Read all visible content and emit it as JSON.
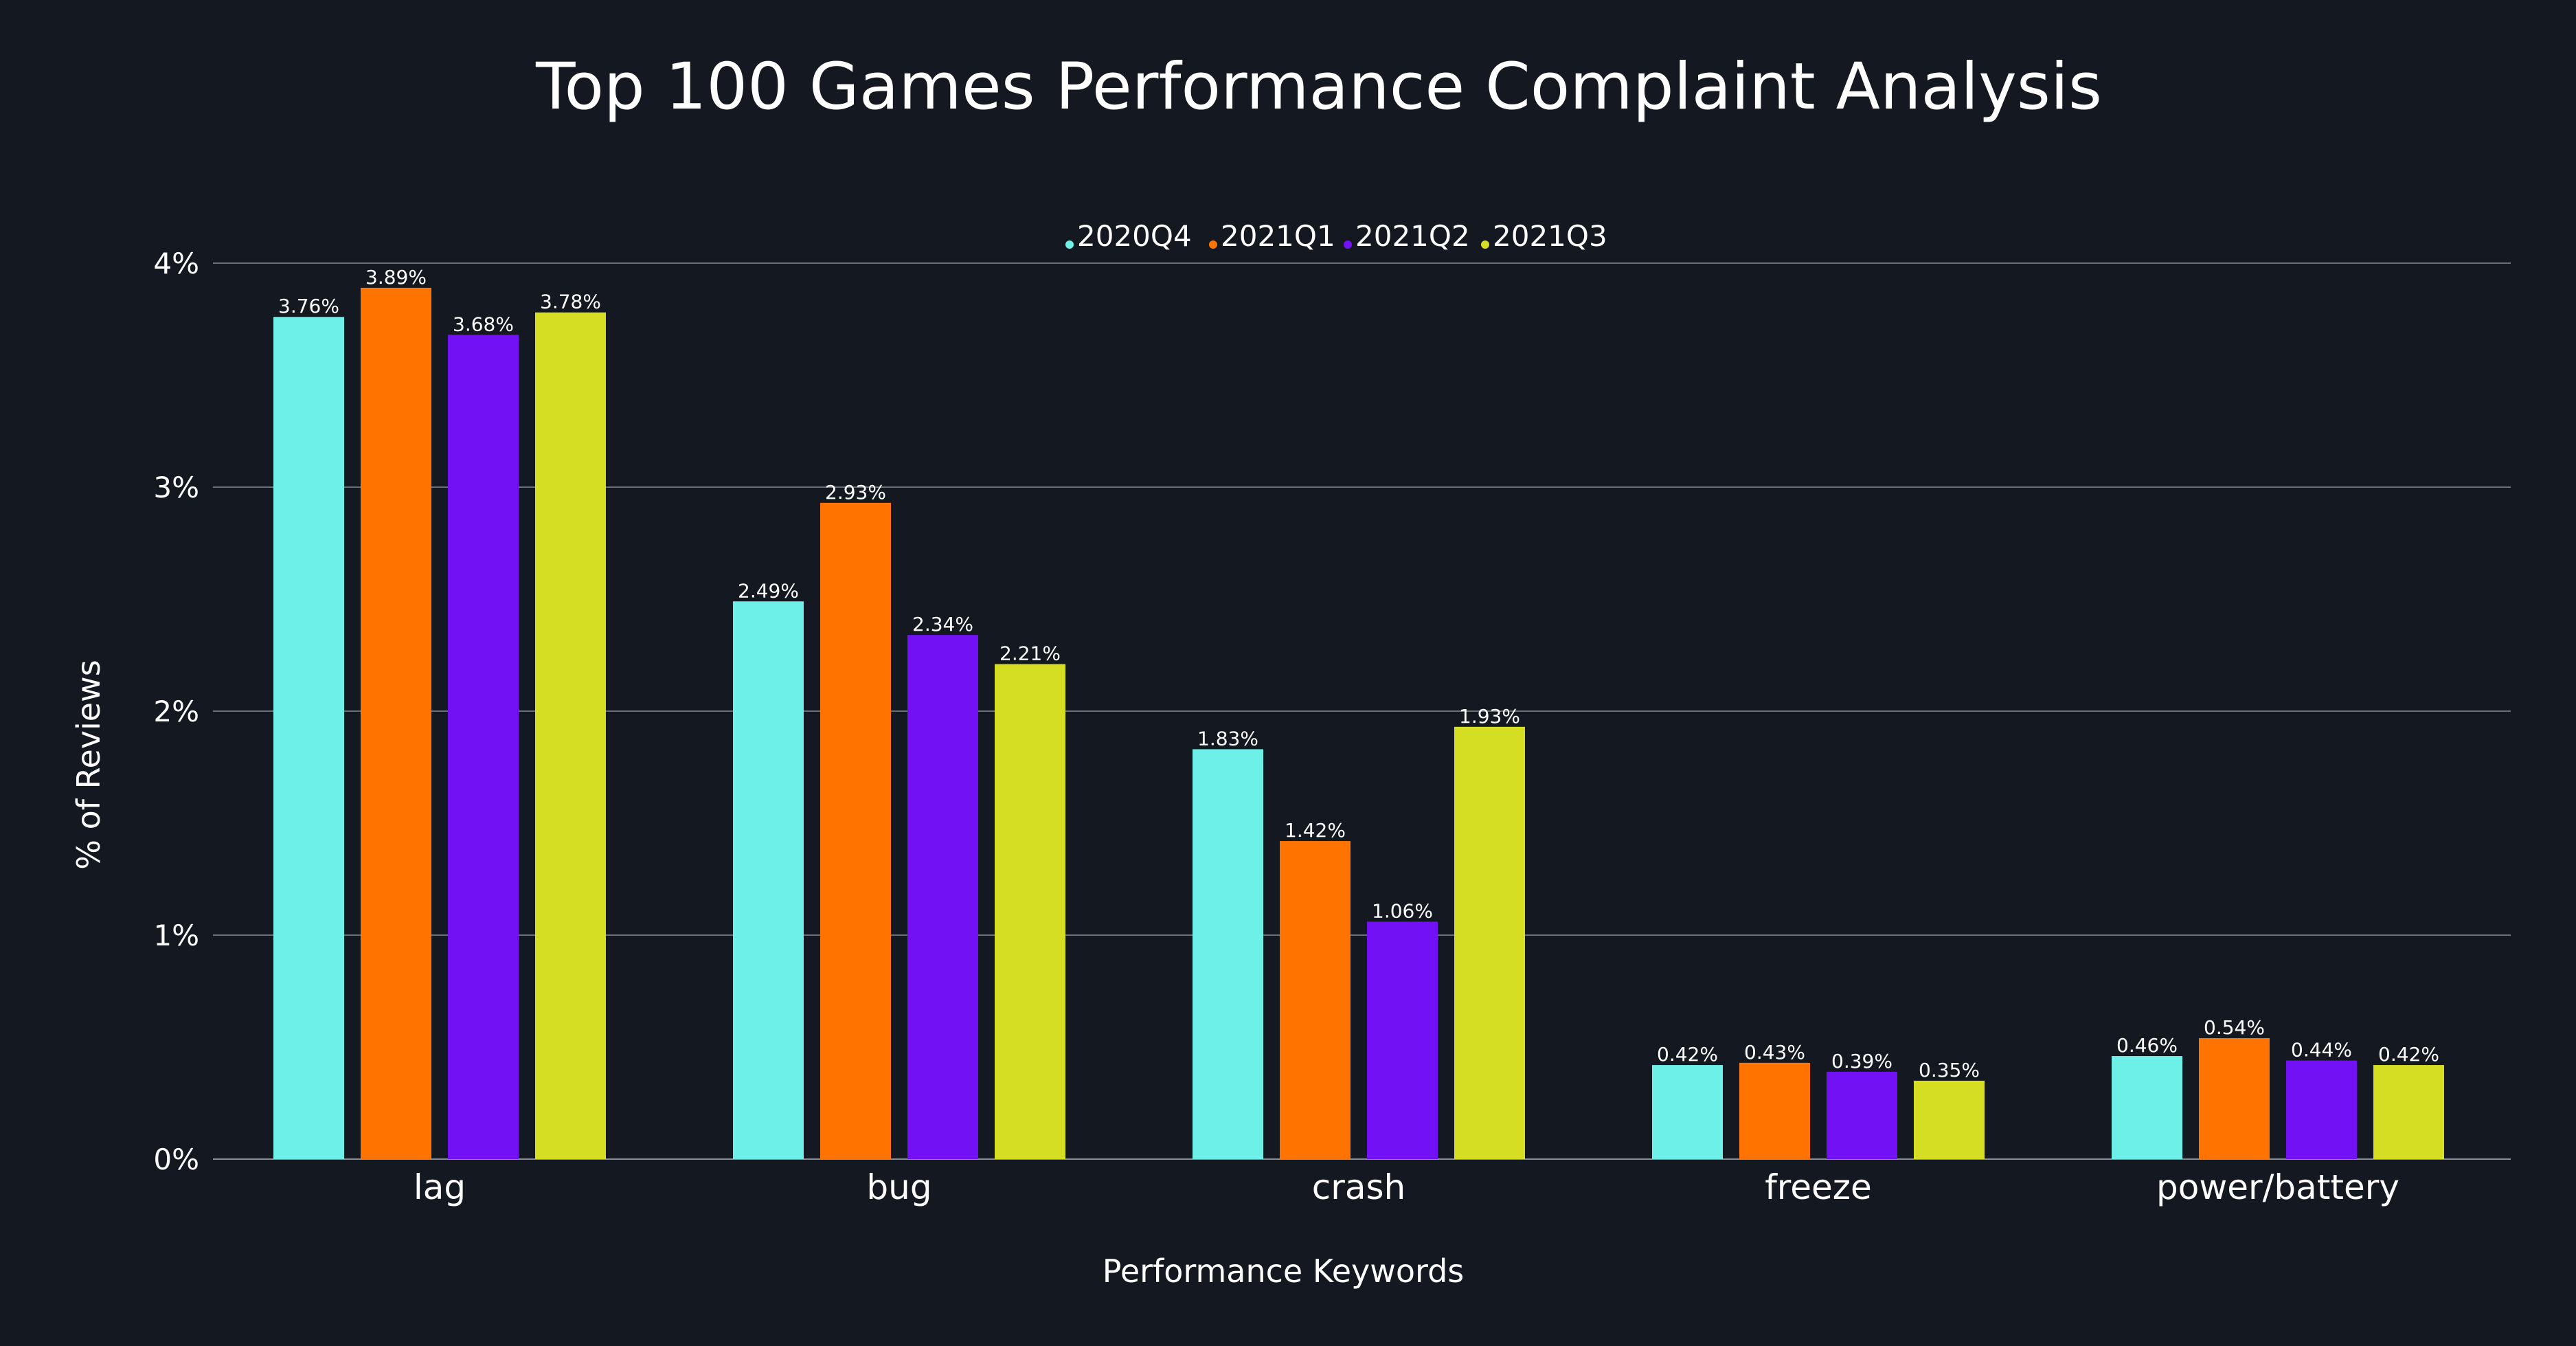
{
  "chart_data": {
    "type": "bar",
    "title": "Top 100 Games Performance Complaint Analysis",
    "xlabel": "Performance Keywords",
    "ylabel": "% of Reviews",
    "ylim": [
      0,
      4
    ],
    "yticks": [
      {
        "value": 0,
        "label": "0%"
      },
      {
        "value": 1,
        "label": "1%"
      },
      {
        "value": 2,
        "label": "2%"
      },
      {
        "value": 3,
        "label": "3%"
      },
      {
        "value": 4,
        "label": "4%"
      }
    ],
    "grid": true,
    "legend_position": "top-center",
    "categories": [
      "lag",
      "bug",
      "crash",
      "freeze",
      "power/battery"
    ],
    "series": [
      {
        "name": "2020Q4",
        "color": "#6cf0e8",
        "values": [
          3.76,
          2.49,
          1.83,
          0.42,
          0.46
        ],
        "labels": [
          "3.76%",
          "2.49%",
          "1.83%",
          "0.42%",
          "0.46%"
        ]
      },
      {
        "name": "2021Q1",
        "color": "#ff7300",
        "values": [
          3.89,
          2.93,
          1.42,
          0.43,
          0.54
        ],
        "labels": [
          "3.89%",
          "2.93%",
          "1.42%",
          "0.43%",
          "0.54%"
        ]
      },
      {
        "name": "2021Q2",
        "color": "#7311f5",
        "values": [
          3.68,
          2.34,
          1.06,
          0.39,
          0.44
        ],
        "labels": [
          "3.68%",
          "2.34%",
          "1.06%",
          "0.39%",
          "0.44%"
        ]
      },
      {
        "name": "2021Q3",
        "color": "#d6de23",
        "values": [
          3.78,
          2.21,
          1.93,
          0.35,
          0.42
        ],
        "labels": [
          "3.78%",
          "2.21%",
          "1.93%",
          "0.35%",
          "0.42%"
        ]
      }
    ]
  }
}
